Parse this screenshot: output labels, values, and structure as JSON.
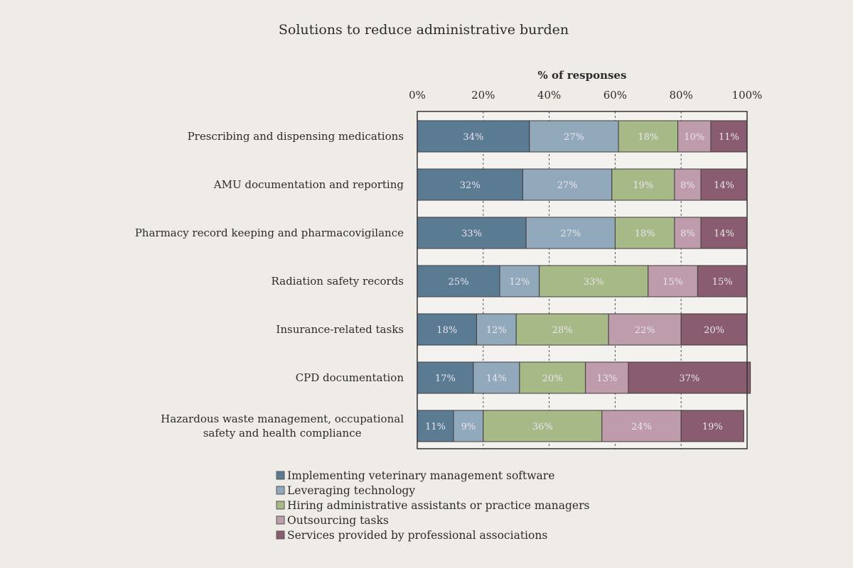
{
  "chart_data": {
    "type": "bar",
    "orientation": "horizontal",
    "stacked": true,
    "title": "Solutions to reduce administrative burden",
    "xlabel": "% of responses",
    "ylabel": "",
    "xlim": [
      0,
      100
    ],
    "x_ticks": [
      "0%",
      "20%",
      "40%",
      "60%",
      "80%",
      "100%"
    ],
    "x_axis_position": "top",
    "grid": "vertical dashed",
    "legend_position": "bottom",
    "categories": [
      "Prescribing and dispensing medications",
      "AMU documentation and reporting",
      "Pharmacy record keeping and pharmacovigilance",
      "Radiation safety records",
      "Insurance-related tasks",
      "CPD documentation",
      "Hazardous waste management, occupational safety and health compliance"
    ],
    "category_lines": [
      [
        "Prescribing and dispensing medications"
      ],
      [
        "AMU documentation and reporting"
      ],
      [
        "Pharmacy record keeping and pharmacovigilance"
      ],
      [
        "Radiation safety records"
      ],
      [
        "Insurance-related tasks"
      ],
      [
        "CPD documentation"
      ],
      [
        "Hazardous waste management, occupational",
        "safety and health compliance"
      ]
    ],
    "series": [
      {
        "name": "Implementing veterinary management software",
        "color": "#5b7b93",
        "values": [
          34,
          32,
          33,
          25,
          18,
          17,
          11
        ]
      },
      {
        "name": "Leveraging technology",
        "color": "#91a9bb",
        "values": [
          27,
          27,
          27,
          12,
          12,
          14,
          9
        ]
      },
      {
        "name": "Hiring administrative assistants or practice managers",
        "color": "#a8b988",
        "values": [
          18,
          19,
          18,
          33,
          28,
          20,
          36
        ]
      },
      {
        "name": "Outsourcing tasks",
        "color": "#bf9cab",
        "values": [
          10,
          8,
          8,
          15,
          22,
          13,
          24
        ]
      },
      {
        "name": "Services provided by professional associations",
        "color": "#8a5c70",
        "values": [
          11,
          14,
          14,
          15,
          20,
          37,
          19
        ]
      }
    ],
    "value_suffix": "%"
  }
}
